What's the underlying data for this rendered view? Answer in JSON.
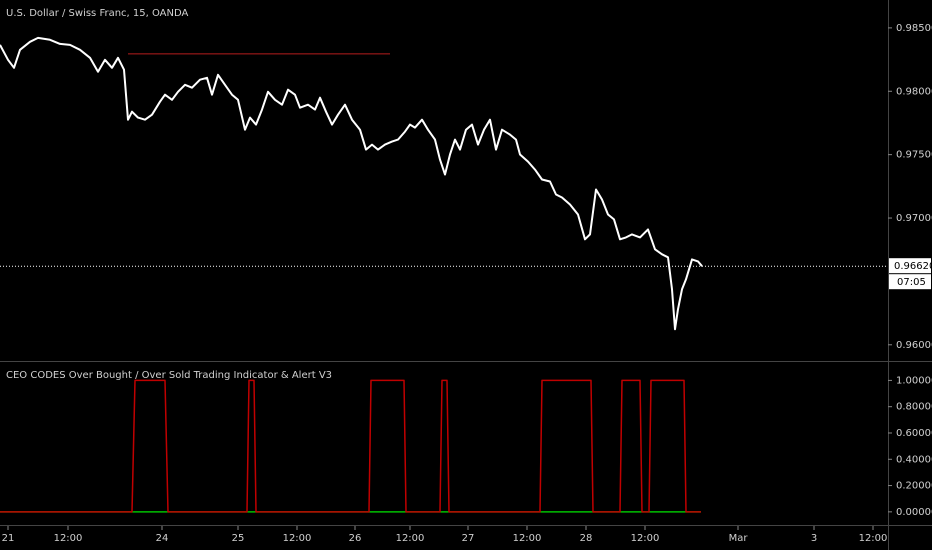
{
  "chart_data": [
    {
      "type": "line",
      "title": "U.S. Dollar / Swiss Franc, 15, OANDA",
      "xlim": [
        0,
        888
      ],
      "ylim": [
        0.9588,
        0.9872
      ],
      "yticks": [
        {
          "value": 0.96,
          "label": "0.96000"
        },
        {
          "value": 0.97,
          "label": "0.97000"
        },
        {
          "value": 0.975,
          "label": "0.97500"
        },
        {
          "value": 0.98,
          "label": "0.98000"
        },
        {
          "value": 0.985,
          "label": "0.98500"
        }
      ],
      "grid": false,
      "series": [
        {
          "name": "USDCHF",
          "color": "#ffffff",
          "x": [
            0,
            8,
            14,
            20,
            30,
            38,
            50,
            60,
            70,
            80,
            90,
            98,
            105,
            112,
            118,
            124,
            128,
            132,
            138,
            145,
            152,
            160,
            165,
            172,
            178,
            185,
            192,
            200,
            207,
            212,
            218,
            225,
            232,
            238,
            245,
            250,
            256,
            262,
            268,
            275,
            282,
            288,
            295,
            300,
            308,
            315,
            320,
            326,
            332,
            338,
            345,
            352,
            360,
            366,
            372,
            378,
            385,
            392,
            398,
            405,
            410,
            415,
            422,
            428,
            435,
            440,
            445,
            450,
            455,
            460,
            466,
            472,
            478,
            484,
            490,
            496,
            502,
            510,
            516,
            520,
            528,
            535,
            542,
            550,
            556,
            562,
            570,
            578,
            585,
            590,
            596,
            602,
            608,
            614,
            620,
            626,
            632,
            640,
            648,
            655,
            662,
            668,
            672,
            675,
            678,
            682,
            686,
            692,
            698,
            702
          ],
          "values": [
            0.98366,
            0.98248,
            0.98185,
            0.98327,
            0.9839,
            0.98421,
            0.98406,
            0.98374,
            0.98366,
            0.98327,
            0.98264,
            0.98154,
            0.98248,
            0.98185,
            0.98264,
            0.9817,
            0.97776,
            0.97839,
            0.97792,
            0.97776,
            0.97815,
            0.97918,
            0.97973,
            0.97933,
            0.97996,
            0.98051,
            0.98028,
            0.98091,
            0.98106,
            0.97973,
            0.9813,
            0.98051,
            0.97973,
            0.97933,
            0.97697,
            0.97792,
            0.97737,
            0.97855,
            0.97996,
            0.97933,
            0.97894,
            0.98012,
            0.97973,
            0.9787,
            0.97894,
            0.97855,
            0.97949,
            0.97839,
            0.97737,
            0.97815,
            0.97894,
            0.97776,
            0.97697,
            0.9754,
            0.97579,
            0.9754,
            0.97579,
            0.97603,
            0.97619,
            0.97682,
            0.97737,
            0.97713,
            0.97776,
            0.97697,
            0.97619,
            0.97461,
            0.97343,
            0.97501,
            0.97619,
            0.9754,
            0.97697,
            0.97737,
            0.97579,
            0.97697,
            0.97776,
            0.9754,
            0.97697,
            0.97658,
            0.97619,
            0.97501,
            0.97445,
            0.97382,
            0.97304,
            0.97288,
            0.97186,
            0.97162,
            0.97107,
            0.97028,
            0.96832,
            0.96871,
            0.97225,
            0.97146,
            0.97028,
            0.96989,
            0.96832,
            0.96847,
            0.96871,
            0.96847,
            0.9691,
            0.96753,
            0.96714,
            0.9669,
            0.96438,
            0.96123,
            0.96281,
            0.96438,
            0.96517,
            0.96674,
            0.96658,
            0.9662
          ]
        }
      ],
      "hline": {
        "value": 0.98295,
        "xrange": [
          128,
          390
        ],
        "color": "#b71c1c"
      },
      "last_value": {
        "value": 0.9662,
        "label": "0.96620"
      },
      "countdown": "07:05"
    },
    {
      "type": "line",
      "title": "CEO CODES Over Bought / Over Sold Trading Indicator & Alert V3",
      "xlim": [
        0,
        888
      ],
      "ylim": [
        -0.1,
        1.14
      ],
      "yticks": [
        {
          "value": 0,
          "label": "0.00000"
        },
        {
          "value": 0.2,
          "label": "0.20000"
        },
        {
          "value": 0.4,
          "label": "0.40000"
        },
        {
          "value": 0.6,
          "label": "0.60000"
        },
        {
          "value": 0.8,
          "label": "0.80000"
        },
        {
          "value": 1,
          "label": "1.00000"
        }
      ],
      "xticks": [
        {
          "value": 8,
          "label": "21"
        },
        {
          "value": 68,
          "label": "12:00"
        },
        {
          "value": 162,
          "label": "24"
        },
        {
          "value": 238,
          "label": "25"
        },
        {
          "value": 297,
          "label": "12:00"
        },
        {
          "value": 355,
          "label": "26"
        },
        {
          "value": 410,
          "label": "12:00"
        },
        {
          "value": 468,
          "label": "27"
        },
        {
          "value": 527,
          "label": "12:00"
        },
        {
          "value": 586,
          "label": "28"
        },
        {
          "value": 645,
          "label": "12:00"
        },
        {
          "value": 738,
          "label": "Mar"
        },
        {
          "value": 814,
          "label": "3"
        },
        {
          "value": 873,
          "label": "12:00"
        }
      ],
      "grid": false,
      "series": [
        {
          "name": "Over Sold",
          "color": "#00c000",
          "x": [
            0,
            701
          ],
          "values": [
            0,
            0
          ]
        },
        {
          "name": "Over Bought",
          "color": "#c00000",
          "x": [
            0,
            132,
            135,
            165,
            168,
            247,
            249,
            254,
            256,
            369,
            371,
            404,
            406,
            440,
            442,
            447,
            449,
            540,
            542,
            591,
            593,
            620,
            622,
            640,
            642,
            649,
            651,
            684,
            686,
            701
          ],
          "values": [
            0,
            0,
            1,
            1,
            0,
            0,
            1,
            1,
            0,
            0,
            1,
            1,
            0,
            0,
            1,
            1,
            0,
            0,
            1,
            1,
            0,
            0,
            1,
            1,
            0,
            0,
            1,
            1,
            0,
            0
          ]
        }
      ]
    }
  ]
}
